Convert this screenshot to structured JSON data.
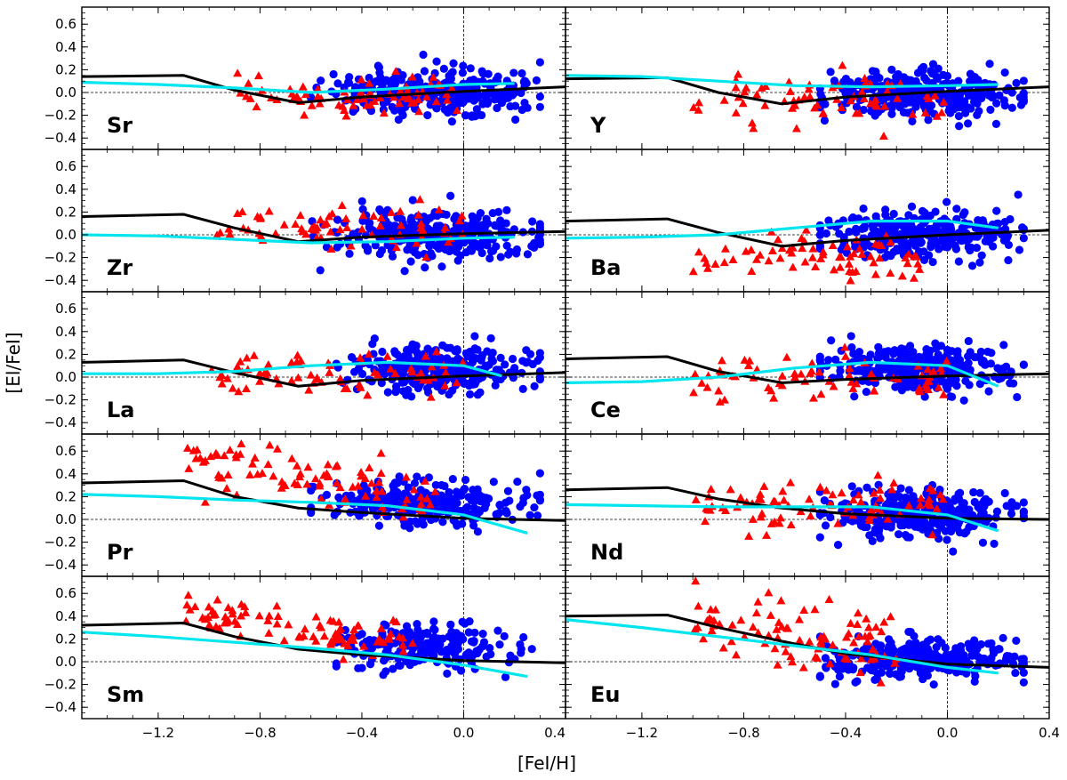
{
  "figure": {
    "xlabel": "[FeI/H]",
    "ylabel": "[El/FeI]"
  },
  "colors": {
    "circles": "#0000ff",
    "triangles": "#ff0000",
    "model_black": "#000000",
    "model_cyan": "#00e5ee"
  },
  "chart_data": [
    {
      "type": "scatter",
      "panel": "Sr",
      "xlim": [
        -1.5,
        0.4
      ],
      "ylim": [
        -0.5,
        0.75
      ],
      "xticks": [
        -1.2,
        -0.8,
        -0.4,
        0.0,
        0.4
      ],
      "yticks": [
        -0.4,
        -0.2,
        0.0,
        0.2,
        0.4,
        0.6
      ],
      "xtick_labels": [
        "−1.2",
        "−0.8",
        "−0.4",
        "0.0",
        "0.4"
      ],
      "ytick_labels": [
        "−0.4",
        "−0.2",
        "0.0",
        "0.2",
        "0.4",
        "0.6"
      ],
      "circles": {
        "x_range": [
          -0.6,
          0.3
        ],
        "center": -0.1,
        "y_mean": 0.0,
        "y_sd": 0.1,
        "n": 320
      },
      "triangles": {
        "x_range": [
          -0.9,
          0.0
        ],
        "y_mean": -0.02,
        "y_sd": 0.08,
        "n": 70
      },
      "black_line": [
        [
          -1.5,
          0.14
        ],
        [
          -1.1,
          0.15
        ],
        [
          -0.9,
          0.02
        ],
        [
          -0.65,
          -0.09
        ],
        [
          -0.4,
          -0.04
        ],
        [
          0.0,
          0.01
        ],
        [
          0.4,
          0.05
        ]
      ],
      "cyan_line": [
        [
          -1.5,
          0.09
        ],
        [
          -1.2,
          0.07
        ],
        [
          -0.9,
          0.04
        ],
        [
          -0.6,
          0.0
        ],
        [
          -0.3,
          0.03
        ],
        [
          0.0,
          0.07
        ],
        [
          0.2,
          0.08
        ]
      ]
    },
    {
      "type": "scatter",
      "panel": "Y",
      "xlim": [
        -1.5,
        0.4
      ],
      "ylim": [
        -0.5,
        0.75
      ],
      "xticks": [
        -1.2,
        -0.8,
        -0.4,
        0.0,
        0.4
      ],
      "yticks": [
        -0.4,
        -0.2,
        0.0,
        0.2,
        0.4,
        0.6
      ],
      "xtick_labels": [
        "−1.2",
        "−0.8",
        "−0.4",
        "0.0",
        "0.4"
      ],
      "ytick_labels": [
        "−0.4",
        "−0.2",
        "0.0",
        "0.2",
        "0.4",
        "0.6"
      ],
      "circles": {
        "x_range": [
          -0.5,
          0.3
        ],
        "center": -0.1,
        "y_mean": 0.0,
        "y_sd": 0.1,
        "n": 320
      },
      "triangles": {
        "x_range": [
          -1.0,
          0.0
        ],
        "y_mean": -0.05,
        "y_sd": 0.12,
        "n": 70
      },
      "black_line": [
        [
          -1.5,
          0.12
        ],
        [
          -1.1,
          0.13
        ],
        [
          -0.9,
          0.0
        ],
        [
          -0.65,
          -0.1
        ],
        [
          -0.4,
          -0.04
        ],
        [
          0.0,
          0.01
        ],
        [
          0.4,
          0.05
        ]
      ],
      "cyan_line": [
        [
          -1.5,
          0.15
        ],
        [
          -1.2,
          0.14
        ],
        [
          -0.9,
          0.1
        ],
        [
          -0.6,
          0.06
        ],
        [
          -0.3,
          0.05
        ],
        [
          0.0,
          0.06
        ],
        [
          0.2,
          0.07
        ]
      ]
    },
    {
      "type": "scatter",
      "panel": "Zr",
      "xlim": [
        -1.5,
        0.4
      ],
      "ylim": [
        -0.5,
        0.75
      ],
      "xticks": [
        -1.2,
        -0.8,
        -0.4,
        0.0,
        0.4
      ],
      "yticks": [
        -0.4,
        -0.2,
        0.0,
        0.2,
        0.4,
        0.6
      ],
      "xtick_labels": [
        "−1.2",
        "−0.8",
        "−0.4",
        "0.0",
        "0.4"
      ],
      "ytick_labels": [
        "−0.4",
        "−0.2",
        "0.0",
        "0.2",
        "0.4",
        "0.6"
      ],
      "circles": {
        "x_range": [
          -0.6,
          0.3
        ],
        "center": -0.1,
        "y_mean": 0.0,
        "y_sd": 0.1,
        "n": 320
      },
      "triangles": {
        "x_range": [
          -1.0,
          0.0
        ],
        "y_mean": 0.06,
        "y_sd": 0.1,
        "n": 70
      },
      "black_line": [
        [
          -1.5,
          0.16
        ],
        [
          -1.1,
          0.18
        ],
        [
          -0.9,
          0.06
        ],
        [
          -0.65,
          -0.06
        ],
        [
          -0.4,
          -0.02
        ],
        [
          0.0,
          0.01
        ],
        [
          0.4,
          0.03
        ]
      ],
      "cyan_line": [
        [
          -1.5,
          0.0
        ],
        [
          -1.2,
          -0.01
        ],
        [
          -0.9,
          -0.04
        ],
        [
          -0.6,
          -0.07
        ],
        [
          -0.3,
          -0.06
        ],
        [
          0.0,
          -0.03
        ],
        [
          0.2,
          -0.02
        ]
      ]
    },
    {
      "type": "scatter",
      "panel": "Ba",
      "xlim": [
        -1.5,
        0.4
      ],
      "ylim": [
        -0.5,
        0.75
      ],
      "xticks": [
        -1.2,
        -0.8,
        -0.4,
        0.0,
        0.4
      ],
      "yticks": [
        -0.4,
        -0.2,
        0.0,
        0.2,
        0.4,
        0.6
      ],
      "xtick_labels": [
        "−1.2",
        "−0.8",
        "−0.4",
        "0.0",
        "0.4"
      ],
      "ytick_labels": [
        "−0.4",
        "−0.2",
        "0.0",
        "0.2",
        "0.4",
        "0.6"
      ],
      "circles": {
        "x_range": [
          -0.5,
          0.3
        ],
        "center": -0.1,
        "y_mean": 0.0,
        "y_sd": 0.1,
        "n": 320
      },
      "triangles": {
        "x_range": [
          -1.0,
          -0.1
        ],
        "y_mean": -0.2,
        "y_sd": 0.12,
        "n": 70
      },
      "black_line": [
        [
          -1.5,
          0.12
        ],
        [
          -1.1,
          0.14
        ],
        [
          -0.9,
          0.02
        ],
        [
          -0.65,
          -0.1
        ],
        [
          -0.4,
          -0.05
        ],
        [
          0.0,
          0.0
        ],
        [
          0.4,
          0.04
        ]
      ],
      "cyan_line": [
        [
          -1.5,
          -0.03
        ],
        [
          -1.2,
          -0.02
        ],
        [
          -0.9,
          0.0
        ],
        [
          -0.6,
          0.06
        ],
        [
          -0.3,
          0.12
        ],
        [
          0.0,
          0.12
        ],
        [
          0.2,
          0.06
        ]
      ]
    },
    {
      "type": "scatter",
      "panel": "La",
      "xlim": [
        -1.5,
        0.4
      ],
      "ylim": [
        -0.5,
        0.75
      ],
      "xticks": [
        -1.2,
        -0.8,
        -0.4,
        0.0,
        0.4
      ],
      "yticks": [
        -0.4,
        -0.2,
        0.0,
        0.2,
        0.4,
        0.6
      ],
      "xtick_labels": [
        "−1.2",
        "−0.8",
        "−0.4",
        "0.0",
        "0.4"
      ],
      "ytick_labels": [
        "−0.4",
        "−0.2",
        "0.0",
        "0.2",
        "0.4",
        "0.6"
      ],
      "circles": {
        "x_range": [
          -0.5,
          0.3
        ],
        "center": -0.1,
        "y_mean": 0.08,
        "y_sd": 0.1,
        "n": 320
      },
      "triangles": {
        "x_range": [
          -1.0,
          0.0
        ],
        "y_mean": 0.04,
        "y_sd": 0.08,
        "n": 70
      },
      "black_line": [
        [
          -1.5,
          0.13
        ],
        [
          -1.1,
          0.15
        ],
        [
          -0.9,
          0.04
        ],
        [
          -0.65,
          -0.08
        ],
        [
          -0.4,
          -0.03
        ],
        [
          0.0,
          0.01
        ],
        [
          0.4,
          0.04
        ]
      ],
      "cyan_line": [
        [
          -1.5,
          0.03
        ],
        [
          -1.2,
          0.03
        ],
        [
          -0.9,
          0.05
        ],
        [
          -0.6,
          0.1
        ],
        [
          -0.3,
          0.13
        ],
        [
          0.0,
          0.1
        ],
        [
          0.15,
          0.01
        ]
      ]
    },
    {
      "type": "scatter",
      "panel": "Ce",
      "xlim": [
        -1.5,
        0.4
      ],
      "ylim": [
        -0.5,
        0.75
      ],
      "xticks": [
        -1.2,
        -0.8,
        -0.4,
        0.0,
        0.4
      ],
      "yticks": [
        -0.4,
        -0.2,
        0.0,
        0.2,
        0.4,
        0.6
      ],
      "xtick_labels": [
        "−1.2",
        "−0.8",
        "−0.4",
        "0.0",
        "0.4"
      ],
      "ytick_labels": [
        "−0.4",
        "−0.2",
        "0.0",
        "0.2",
        "0.4",
        "0.6"
      ],
      "circles": {
        "x_range": [
          -0.5,
          0.3
        ],
        "center": -0.1,
        "y_mean": 0.07,
        "y_sd": 0.1,
        "n": 320
      },
      "triangles": {
        "x_range": [
          -1.0,
          0.0
        ],
        "y_mean": 0.0,
        "y_sd": 0.1,
        "n": 70
      },
      "black_line": [
        [
          -1.5,
          0.16
        ],
        [
          -1.1,
          0.18
        ],
        [
          -0.9,
          0.05
        ],
        [
          -0.65,
          -0.05
        ],
        [
          -0.4,
          -0.02
        ],
        [
          0.0,
          0.01
        ],
        [
          0.4,
          0.03
        ]
      ],
      "cyan_line": [
        [
          -1.5,
          -0.05
        ],
        [
          -1.2,
          -0.04
        ],
        [
          -0.9,
          0.0
        ],
        [
          -0.6,
          0.08
        ],
        [
          -0.3,
          0.13
        ],
        [
          0.0,
          0.1
        ],
        [
          0.2,
          -0.08
        ]
      ]
    },
    {
      "type": "scatter",
      "panel": "Pr",
      "xlim": [
        -1.5,
        0.4
      ],
      "ylim": [
        -0.5,
        0.75
      ],
      "xticks": [
        -1.2,
        -0.8,
        -0.4,
        0.0,
        0.4
      ],
      "yticks": [
        -0.4,
        -0.2,
        0.0,
        0.2,
        0.4,
        0.6
      ],
      "xtick_labels": [
        "−1.2",
        "−0.8",
        "−0.4",
        "0.0",
        "0.4"
      ],
      "ytick_labels": [
        "−0.4",
        "−0.2",
        "0.0",
        "0.2",
        "0.4",
        "0.6"
      ],
      "circles": {
        "x_range": [
          -0.6,
          0.3
        ],
        "center": -0.15,
        "y_mean": 0.15,
        "y_sd": 0.1,
        "n": 260
      },
      "triangles": {
        "x_range": [
          -1.1,
          -0.1
        ],
        "y_mean": 0.35,
        "y_sd": 0.12,
        "n": 90
      },
      "black_line": [
        [
          -1.5,
          0.32
        ],
        [
          -1.1,
          0.34
        ],
        [
          -0.9,
          0.2
        ],
        [
          -0.65,
          0.1
        ],
        [
          -0.4,
          0.06
        ],
        [
          0.0,
          0.01
        ],
        [
          0.4,
          -0.01
        ]
      ],
      "cyan_line": [
        [
          -1.5,
          0.22
        ],
        [
          -1.2,
          0.2
        ],
        [
          -0.9,
          0.17
        ],
        [
          -0.6,
          0.15
        ],
        [
          -0.3,
          0.12
        ],
        [
          0.0,
          0.04
        ],
        [
          0.25,
          -0.12
        ]
      ]
    },
    {
      "type": "scatter",
      "panel": "Nd",
      "xlim": [
        -1.5,
        0.4
      ],
      "ylim": [
        -0.5,
        0.75
      ],
      "xticks": [
        -1.2,
        -0.8,
        -0.4,
        0.0,
        0.4
      ],
      "yticks": [
        -0.4,
        -0.2,
        0.0,
        0.2,
        0.4,
        0.6
      ],
      "xtick_labels": [
        "−1.2",
        "−0.8",
        "−0.4",
        "0.0",
        "0.4"
      ],
      "ytick_labels": [
        "−0.4",
        "−0.2",
        "0.0",
        "0.2",
        "0.4",
        "0.6"
      ],
      "circles": {
        "x_range": [
          -0.5,
          0.3
        ],
        "center": -0.1,
        "y_mean": 0.05,
        "y_sd": 0.1,
        "n": 320
      },
      "triangles": {
        "x_range": [
          -1.0,
          0.0
        ],
        "y_mean": 0.12,
        "y_sd": 0.1,
        "n": 80
      },
      "black_line": [
        [
          -1.5,
          0.26
        ],
        [
          -1.1,
          0.28
        ],
        [
          -0.9,
          0.18
        ],
        [
          -0.65,
          0.1
        ],
        [
          -0.4,
          0.05
        ],
        [
          0.0,
          0.01
        ],
        [
          0.4,
          0.0
        ]
      ],
      "cyan_line": [
        [
          -1.5,
          0.13
        ],
        [
          -1.2,
          0.12
        ],
        [
          -0.9,
          0.11
        ],
        [
          -0.6,
          0.11
        ],
        [
          -0.3,
          0.11
        ],
        [
          0.0,
          0.04
        ],
        [
          0.2,
          -0.1
        ]
      ]
    },
    {
      "type": "scatter",
      "panel": "Sm",
      "xlim": [
        -1.5,
        0.4
      ],
      "ylim": [
        -0.5,
        0.75
      ],
      "xticks": [
        -1.2,
        -0.8,
        -0.4,
        0.0,
        0.4
      ],
      "yticks": [
        -0.4,
        -0.2,
        0.0,
        0.2,
        0.4,
        0.6
      ],
      "xtick_labels": [
        "−1.2",
        "−0.8",
        "−0.4",
        "0.0",
        "0.4"
      ],
      "ytick_labels": [
        "−0.4",
        "−0.2",
        "0.0",
        "0.2",
        "0.4",
        "0.6"
      ],
      "circles": {
        "x_range": [
          -0.5,
          0.3
        ],
        "center": -0.15,
        "y_mean": 0.13,
        "y_sd": 0.1,
        "n": 200
      },
      "triangles": {
        "x_range": [
          -1.1,
          -0.2
        ],
        "y_mean": 0.3,
        "y_sd": 0.08,
        "n": 90
      },
      "black_line": [
        [
          -1.5,
          0.32
        ],
        [
          -1.1,
          0.34
        ],
        [
          -0.9,
          0.22
        ],
        [
          -0.65,
          0.11
        ],
        [
          -0.4,
          0.06
        ],
        [
          0.0,
          0.01
        ],
        [
          0.4,
          -0.01
        ]
      ],
      "cyan_line": [
        [
          -1.5,
          0.26
        ],
        [
          -1.2,
          0.22
        ],
        [
          -0.9,
          0.17
        ],
        [
          -0.6,
          0.12
        ],
        [
          -0.3,
          0.06
        ],
        [
          0.0,
          -0.03
        ],
        [
          0.25,
          -0.13
        ]
      ]
    },
    {
      "type": "scatter",
      "panel": "Eu",
      "xlim": [
        -1.5,
        0.4
      ],
      "ylim": [
        -0.5,
        0.75
      ],
      "xticks": [
        -1.2,
        -0.8,
        -0.4,
        0.0,
        0.4
      ],
      "yticks": [
        -0.4,
        -0.2,
        0.0,
        0.2,
        0.4,
        0.6
      ],
      "xtick_labels": [
        "−1.2",
        "−0.8",
        "−0.4",
        "0.0",
        "0.4"
      ],
      "ytick_labels": [
        "−0.4",
        "−0.2",
        "0.0",
        "0.2",
        "0.4",
        "0.6"
      ],
      "circles": {
        "x_range": [
          -0.5,
          0.3
        ],
        "center": -0.1,
        "y_mean": 0.02,
        "y_sd": 0.08,
        "n": 340
      },
      "triangles": {
        "x_range": [
          -1.0,
          -0.2
        ],
        "y_mean": 0.25,
        "y_sd": 0.15,
        "n": 90
      },
      "black_line": [
        [
          -1.5,
          0.4
        ],
        [
          -1.1,
          0.41
        ],
        [
          -0.9,
          0.3
        ],
        [
          -0.65,
          0.18
        ],
        [
          -0.4,
          0.07
        ],
        [
          0.0,
          -0.02
        ],
        [
          0.4,
          -0.05
        ]
      ],
      "cyan_line": [
        [
          -1.5,
          0.37
        ],
        [
          -1.2,
          0.3
        ],
        [
          -0.9,
          0.22
        ],
        [
          -0.6,
          0.14
        ],
        [
          -0.3,
          0.06
        ],
        [
          0.0,
          -0.05
        ],
        [
          0.2,
          -0.1
        ]
      ]
    }
  ]
}
